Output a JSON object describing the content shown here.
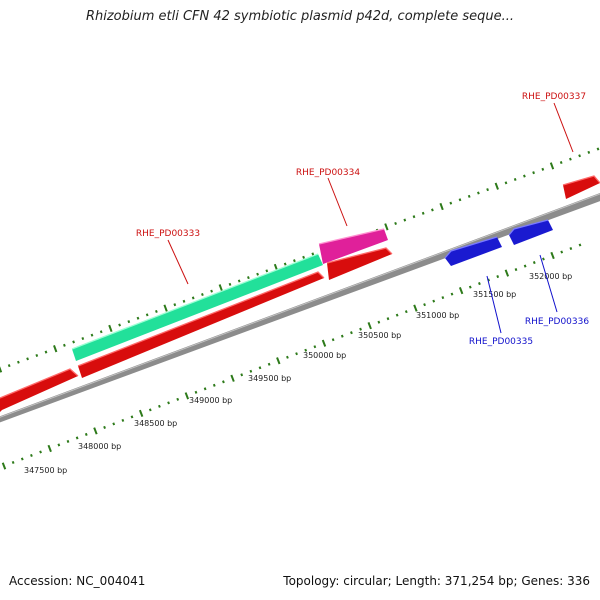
{
  "title": "Rhizobium etli CFN 42 symbiotic plasmid p42d, complete seque...",
  "footer": {
    "accession": "Accession: NC_004041",
    "summary": "Topology: circular; Length: 371,254 bp; Genes: 336"
  },
  "colors": {
    "forward_strand": "#dd1111",
    "reverse_strand": "#1111cc",
    "ticks": "#2d7a1a",
    "backbone": "#8f8f8f",
    "highlight_green": "#22e29a",
    "highlight_magenta": "#e0209a"
  },
  "position_labels": [
    "347500 bp",
    "348000 bp",
    "348500 bp",
    "349000 bp",
    "349500 bp",
    "350000 bp",
    "350500 bp",
    "351000 bp",
    "351500 bp",
    "352000 bp"
  ],
  "genes": [
    {
      "label": "RHE_PD00333",
      "strand": "forward"
    },
    {
      "label": "RHE_PD00334",
      "strand": "forward"
    },
    {
      "label": "RHE_PD00335",
      "strand": "reverse"
    },
    {
      "label": "RHE_PD00336",
      "strand": "reverse"
    },
    {
      "label": "RHE_PD00337",
      "strand": "forward"
    }
  ]
}
